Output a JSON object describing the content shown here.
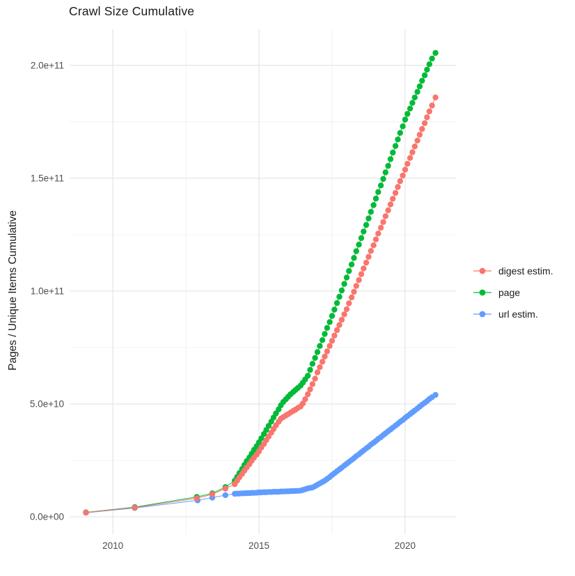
{
  "title": "Crawl Size Cumulative",
  "chart_data": {
    "type": "line",
    "title": "Crawl Size Cumulative",
    "xlabel": "",
    "ylabel": "Pages / Unique Items Cumulative",
    "values_unit": "1e9 (pages / unique items)",
    "xlim": [
      2008.52,
      2021.74
    ],
    "ylim": [
      -7.7,
      216
    ],
    "grid": true,
    "background": "#FFFFFF",
    "grid_major_color": "#E5E5E5",
    "grid_minor_color": "#F0F0F0",
    "axis_text_color": "#4D4D4D",
    "legend_position": "right",
    "x_ticks": [
      {
        "v": 2010,
        "label": "2010"
      },
      {
        "v": 2015,
        "label": "2015"
      },
      {
        "v": 2020,
        "label": "2020"
      }
    ],
    "x_minor": [
      2012.5,
      2017.5
    ],
    "y_ticks": [
      {
        "v": 0,
        "label": "0.0e+00"
      },
      {
        "v": 50,
        "label": "5.0e+10"
      },
      {
        "v": 100,
        "label": "1.0e+11"
      },
      {
        "v": 150,
        "label": "1.5e+11"
      },
      {
        "v": 200,
        "label": "2.0e+11"
      }
    ],
    "y_minor": [
      25,
      75,
      125,
      175
    ],
    "series": [
      {
        "name": "digest estim.",
        "color": "#F8766D",
        "points": [
          [
            2009.08,
            1.9
          ],
          [
            2010.75,
            4.1
          ],
          [
            2012.87,
            8.2
          ],
          [
            2013.4,
            10.0
          ],
          [
            2013.85,
            12.5
          ],
          [
            2014.17,
            14.5
          ],
          [
            2014.25,
            16.0
          ],
          [
            2014.33,
            17.5
          ],
          [
            2014.42,
            19.0
          ],
          [
            2014.5,
            20.5
          ],
          [
            2014.58,
            21.9
          ],
          [
            2014.67,
            23.3
          ],
          [
            2014.75,
            24.8
          ],
          [
            2014.83,
            26.2
          ],
          [
            2014.92,
            27.6
          ],
          [
            2015.0,
            29.0
          ],
          [
            2015.08,
            30.7
          ],
          [
            2015.17,
            32.3
          ],
          [
            2015.25,
            34.0
          ],
          [
            2015.33,
            35.6
          ],
          [
            2015.42,
            37.3
          ],
          [
            2015.5,
            38.9
          ],
          [
            2015.58,
            40.5
          ],
          [
            2015.67,
            42.1
          ],
          [
            2015.75,
            43.5
          ],
          [
            2015.83,
            44.2
          ],
          [
            2015.92,
            44.9
          ],
          [
            2016.0,
            45.5
          ],
          [
            2016.08,
            46.2
          ],
          [
            2016.17,
            46.9
          ],
          [
            2016.25,
            47.5
          ],
          [
            2016.33,
            48.2
          ],
          [
            2016.42,
            48.9
          ],
          [
            2016.5,
            50.2
          ],
          [
            2016.58,
            52.1
          ],
          [
            2016.67,
            54.3
          ],
          [
            2016.75,
            56.5
          ],
          [
            2016.83,
            58.8
          ],
          [
            2016.92,
            61.2
          ],
          [
            2017.0,
            64.0
          ],
          [
            2017.08,
            66.3
          ],
          [
            2017.17,
            68.7
          ],
          [
            2017.25,
            71.0
          ],
          [
            2017.33,
            73.3
          ],
          [
            2017.42,
            75.7
          ],
          [
            2017.5,
            78.0
          ],
          [
            2017.58,
            80.3
          ],
          [
            2017.67,
            82.7
          ],
          [
            2017.75,
            85.0
          ],
          [
            2017.83,
            87.3
          ],
          [
            2017.92,
            89.7
          ],
          [
            2018.0,
            92.0
          ],
          [
            2018.08,
            94.6
          ],
          [
            2018.17,
            97.2
          ],
          [
            2018.25,
            99.7
          ],
          [
            2018.33,
            102.3
          ],
          [
            2018.42,
            104.9
          ],
          [
            2018.5,
            107.5
          ],
          [
            2018.58,
            110.0
          ],
          [
            2018.67,
            112.6
          ],
          [
            2018.75,
            115.2
          ],
          [
            2018.83,
            117.8
          ],
          [
            2018.92,
            120.3
          ],
          [
            2019.0,
            122.9
          ],
          [
            2019.08,
            125.5
          ],
          [
            2019.17,
            128.1
          ],
          [
            2019.25,
            130.6
          ],
          [
            2019.33,
            133.2
          ],
          [
            2019.42,
            135.8
          ],
          [
            2019.5,
            138.4
          ],
          [
            2019.58,
            140.9
          ],
          [
            2019.67,
            143.5
          ],
          [
            2019.75,
            146.1
          ],
          [
            2019.83,
            148.7
          ],
          [
            2019.92,
            151.2
          ],
          [
            2020.0,
            153.8
          ],
          [
            2020.08,
            156.4
          ],
          [
            2020.17,
            159.0
          ],
          [
            2020.25,
            161.5
          ],
          [
            2020.33,
            164.1
          ],
          [
            2020.42,
            166.7
          ],
          [
            2020.5,
            169.3
          ],
          [
            2020.58,
            171.8
          ],
          [
            2020.67,
            174.4
          ],
          [
            2020.75,
            177.0
          ],
          [
            2020.83,
            179.6
          ],
          [
            2020.92,
            182.2
          ],
          [
            2021.04,
            185.8
          ]
        ]
      },
      {
        "name": "page",
        "color": "#00BA38",
        "points": [
          [
            2009.08,
            2.0
          ],
          [
            2010.75,
            4.3
          ],
          [
            2012.87,
            8.8
          ],
          [
            2013.4,
            10.4
          ],
          [
            2013.85,
            13.2
          ],
          [
            2014.17,
            16.0
          ],
          [
            2014.25,
            17.7
          ],
          [
            2014.33,
            19.4
          ],
          [
            2014.42,
            21.2
          ],
          [
            2014.5,
            23.0
          ],
          [
            2014.58,
            24.7
          ],
          [
            2014.67,
            26.3
          ],
          [
            2014.75,
            28.0
          ],
          [
            2014.83,
            29.7
          ],
          [
            2014.92,
            31.3
          ],
          [
            2015.0,
            33.0
          ],
          [
            2015.08,
            34.8
          ],
          [
            2015.17,
            36.7
          ],
          [
            2015.25,
            38.5
          ],
          [
            2015.33,
            40.3
          ],
          [
            2015.42,
            42.2
          ],
          [
            2015.5,
            44.0
          ],
          [
            2015.58,
            45.8
          ],
          [
            2015.67,
            47.6
          ],
          [
            2015.75,
            49.4
          ],
          [
            2015.83,
            50.9
          ],
          [
            2015.92,
            52.1
          ],
          [
            2016.0,
            53.2
          ],
          [
            2016.08,
            54.3
          ],
          [
            2016.17,
            55.3
          ],
          [
            2016.25,
            56.2
          ],
          [
            2016.33,
            57.1
          ],
          [
            2016.42,
            58.1
          ],
          [
            2016.5,
            59.4
          ],
          [
            2016.58,
            60.9
          ],
          [
            2016.67,
            62.5
          ],
          [
            2016.75,
            65.1
          ],
          [
            2016.83,
            67.8
          ],
          [
            2016.92,
            70.4
          ],
          [
            2017.0,
            73.0
          ],
          [
            2017.08,
            75.7
          ],
          [
            2017.17,
            78.3
          ],
          [
            2017.25,
            81.0
          ],
          [
            2017.33,
            83.7
          ],
          [
            2017.42,
            86.3
          ],
          [
            2017.5,
            89.0
          ],
          [
            2017.58,
            91.8
          ],
          [
            2017.67,
            94.7
          ],
          [
            2017.75,
            97.5
          ],
          [
            2017.83,
            100.3
          ],
          [
            2017.92,
            103.2
          ],
          [
            2018.0,
            106.0
          ],
          [
            2018.08,
            108.9
          ],
          [
            2018.17,
            111.8
          ],
          [
            2018.25,
            114.7
          ],
          [
            2018.33,
            117.7
          ],
          [
            2018.42,
            120.6
          ],
          [
            2018.5,
            123.5
          ],
          [
            2018.58,
            126.4
          ],
          [
            2018.67,
            129.3
          ],
          [
            2018.75,
            132.2
          ],
          [
            2018.83,
            135.1
          ],
          [
            2018.92,
            138.1
          ],
          [
            2019.0,
            141.0
          ],
          [
            2019.08,
            143.9
          ],
          [
            2019.17,
            146.8
          ],
          [
            2019.25,
            149.7
          ],
          [
            2019.33,
            152.6
          ],
          [
            2019.42,
            155.5
          ],
          [
            2019.5,
            158.5
          ],
          [
            2019.58,
            161.4
          ],
          [
            2019.67,
            164.3
          ],
          [
            2019.75,
            167.2
          ],
          [
            2019.83,
            170.1
          ],
          [
            2019.92,
            173.0
          ],
          [
            2020.0,
            176.0
          ],
          [
            2020.08,
            178.5
          ],
          [
            2020.17,
            180.9
          ],
          [
            2020.25,
            183.4
          ],
          [
            2020.33,
            185.8
          ],
          [
            2020.42,
            188.3
          ],
          [
            2020.5,
            190.7
          ],
          [
            2020.58,
            193.2
          ],
          [
            2020.67,
            195.6
          ],
          [
            2020.75,
            198.1
          ],
          [
            2020.83,
            200.5
          ],
          [
            2020.92,
            203.0
          ],
          [
            2021.04,
            205.5
          ]
        ]
      },
      {
        "name": "url estim.",
        "color": "#619CFF",
        "points": [
          [
            2009.08,
            1.8
          ],
          [
            2010.75,
            3.9
          ],
          [
            2012.9,
            7.3
          ],
          [
            2013.4,
            8.5
          ],
          [
            2013.85,
            9.6
          ],
          [
            2014.17,
            10.2
          ],
          [
            2014.25,
            10.3
          ],
          [
            2014.33,
            10.3
          ],
          [
            2014.42,
            10.4
          ],
          [
            2014.5,
            10.4
          ],
          [
            2014.58,
            10.5
          ],
          [
            2014.67,
            10.5
          ],
          [
            2014.75,
            10.6
          ],
          [
            2014.83,
            10.6
          ],
          [
            2014.92,
            10.7
          ],
          [
            2015.0,
            10.8
          ],
          [
            2015.08,
            10.8
          ],
          [
            2015.17,
            10.9
          ],
          [
            2015.25,
            10.9
          ],
          [
            2015.33,
            11.0
          ],
          [
            2015.42,
            11.0
          ],
          [
            2015.5,
            11.1
          ],
          [
            2015.58,
            11.1
          ],
          [
            2015.67,
            11.1
          ],
          [
            2015.75,
            11.2
          ],
          [
            2015.83,
            11.2
          ],
          [
            2015.92,
            11.3
          ],
          [
            2016.0,
            11.3
          ],
          [
            2016.08,
            11.4
          ],
          [
            2016.17,
            11.4
          ],
          [
            2016.25,
            11.5
          ],
          [
            2016.33,
            11.5
          ],
          [
            2016.42,
            11.6
          ],
          [
            2016.5,
            11.9
          ],
          [
            2016.58,
            12.2
          ],
          [
            2016.67,
            12.6
          ],
          [
            2016.75,
            12.8
          ],
          [
            2016.83,
            13.0
          ],
          [
            2016.92,
            13.6
          ],
          [
            2017.0,
            14.2
          ],
          [
            2017.08,
            14.8
          ],
          [
            2017.17,
            15.4
          ],
          [
            2017.25,
            16.0
          ],
          [
            2017.33,
            16.8
          ],
          [
            2017.42,
            17.6
          ],
          [
            2017.5,
            18.5
          ],
          [
            2017.58,
            19.3
          ],
          [
            2017.67,
            20.2
          ],
          [
            2017.75,
            21.0
          ],
          [
            2017.83,
            21.8
          ],
          [
            2017.92,
            22.7
          ],
          [
            2018.0,
            23.5
          ],
          [
            2018.08,
            24.3
          ],
          [
            2018.17,
            25.2
          ],
          [
            2018.25,
            26.0
          ],
          [
            2018.33,
            26.9
          ],
          [
            2018.42,
            27.7
          ],
          [
            2018.5,
            28.6
          ],
          [
            2018.58,
            29.4
          ],
          [
            2018.67,
            30.3
          ],
          [
            2018.75,
            31.1
          ],
          [
            2018.83,
            32.0
          ],
          [
            2018.92,
            32.8
          ],
          [
            2019.0,
            33.6
          ],
          [
            2019.08,
            34.5
          ],
          [
            2019.17,
            35.3
          ],
          [
            2019.25,
            36.2
          ],
          [
            2019.33,
            37.0
          ],
          [
            2019.42,
            37.9
          ],
          [
            2019.5,
            38.7
          ],
          [
            2019.58,
            39.5
          ],
          [
            2019.67,
            40.4
          ],
          [
            2019.75,
            41.2
          ],
          [
            2019.83,
            42.1
          ],
          [
            2019.92,
            42.9
          ],
          [
            2020.0,
            43.8
          ],
          [
            2020.08,
            44.6
          ],
          [
            2020.17,
            45.5
          ],
          [
            2020.25,
            46.3
          ],
          [
            2020.33,
            47.1
          ],
          [
            2020.42,
            48.0
          ],
          [
            2020.5,
            48.8
          ],
          [
            2020.58,
            49.7
          ],
          [
            2020.67,
            50.5
          ],
          [
            2020.75,
            51.3
          ],
          [
            2020.83,
            52.2
          ],
          [
            2020.92,
            53.0
          ],
          [
            2021.04,
            54.0
          ]
        ]
      }
    ]
  }
}
